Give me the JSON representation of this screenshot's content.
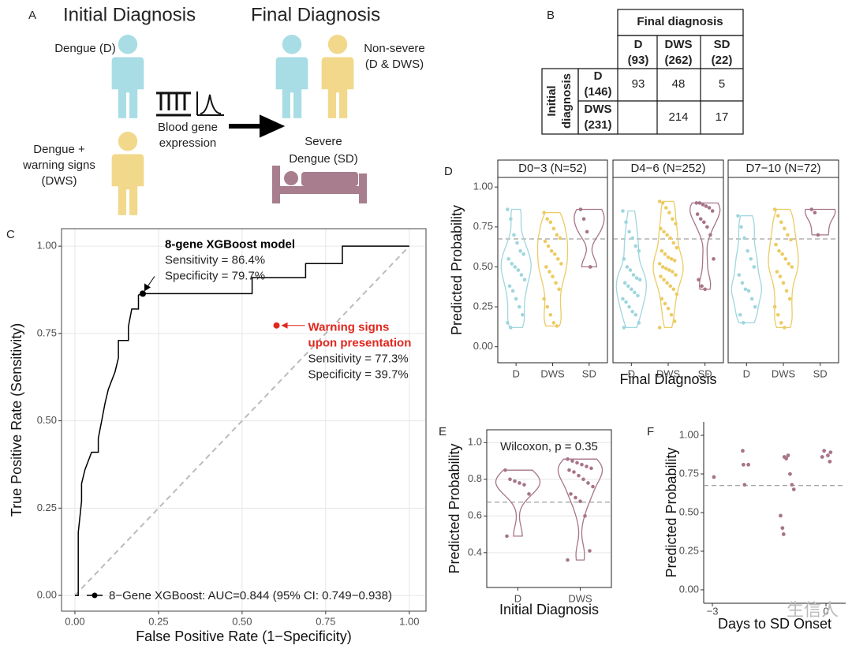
{
  "panel_labels": [
    "A",
    "B",
    "C",
    "D",
    "E",
    "F"
  ],
  "panel_a": {
    "initial": "Initial Diagnosis",
    "final": "Final Diagnosis",
    "dengue": "Dengue (D)",
    "dws": [
      "Dengue +",
      "warning signs",
      "(DWS)"
    ],
    "blood": [
      "Blood gene",
      "expression"
    ],
    "nonsevere": [
      "Non-severe",
      "(D & DWS)"
    ],
    "severe": [
      "Severe",
      "Dengue (SD)"
    ]
  },
  "panel_b": {
    "header": "Final diagnosis",
    "side": [
      "Initial",
      "diagnosis"
    ],
    "columns": [
      [
        "D",
        "(93)"
      ],
      [
        "DWS",
        "(262)"
      ],
      [
        "SD",
        "(22)"
      ]
    ],
    "rows": [
      {
        "label": [
          "D",
          "(146)"
        ],
        "cells": [
          "93",
          "48",
          "5"
        ]
      },
      {
        "label": [
          "DWS",
          "(231)"
        ],
        "cells": [
          null,
          "214",
          "17"
        ]
      }
    ]
  },
  "watermark": "生信人",
  "chart_data": [
    {
      "type": "line",
      "xlabel": "False Positive Rate (1−Specificity)",
      "ylabel": "True Positive Rate (Sensitivity)",
      "x": [
        0,
        0.01,
        0.01,
        0.02,
        0.02,
        0.03,
        0.05,
        0.07,
        0.07,
        0.08,
        0.09,
        0.1,
        0.12,
        0.13,
        0.13,
        0.16,
        0.16,
        0.17,
        0.19,
        0.19,
        0.2,
        0.53,
        0.53,
        0.69,
        0.69,
        0.8,
        0.8,
        1
      ],
      "series": [
        {
          "name": "8−Gene XGBoost: AUC=0.844 (95% CI: 0.749−0.938)",
          "color": "#000000",
          "values": [
            0,
            0,
            0.18,
            0.27,
            0.32,
            0.36,
            0.41,
            0.41,
            0.45,
            0.5,
            0.55,
            0.59,
            0.64,
            0.68,
            0.73,
            0.73,
            0.77,
            0.82,
            0.82,
            0.86,
            0.864,
            0.864,
            0.91,
            0.91,
            0.95,
            0.95,
            1,
            1
          ]
        }
      ],
      "xlim": [
        -0.04,
        1.05
      ],
      "ylim": [
        -0.045,
        1.05
      ],
      "xticks": [
        {
          "value": 0,
          "label": "0.00"
        },
        0.25,
        {
          "value": 0.5,
          "label": "0.50"
        },
        0.75,
        {
          "value": 1,
          "label": "1.00"
        }
      ],
      "yticks": [
        {
          "value": 0,
          "label": "0.00"
        },
        0.25,
        {
          "value": 0.5,
          "label": "0.50"
        },
        0.75,
        {
          "value": 1,
          "label": "1.00"
        }
      ],
      "grid": true,
      "annotations": [
        {
          "title": [
            "8-gene XGBoost model"
          ],
          "lines": [
            "Sensitivity = 86.4%",
            "Specificity = 79.7%"
          ],
          "x": 0.203,
          "y": 0.864,
          "color": "#000000"
        },
        {
          "title": [
            "Warning signs",
            "upon presentation"
          ],
          "lines": [
            "Sensitivity = 77.3%",
            "Specificity = 39.7%"
          ],
          "x": 0.603,
          "y": 0.773,
          "color": "#e0281e"
        }
      ]
    },
    {
      "type": "violin",
      "ylabel": "Predicted Probability",
      "xlabel": "Final Diagnosis",
      "categories": [
        "D",
        "DWS",
        "SD"
      ],
      "colors": [
        "#9fd6de",
        "#eccb63",
        "#a7748a"
      ],
      "ylim": [
        -0.1,
        1.06
      ],
      "yticks": [
        {
          "value": 0,
          "label": "0.00"
        },
        0.25,
        {
          "value": 0.5,
          "label": "0.50"
        },
        0.75,
        {
          "value": 1,
          "label": "1.00"
        }
      ],
      "threshold": 0.675,
      "facets": [
        {
          "title": "D0−3 (N=52)",
          "groups": [
            [
              0.86,
              0.8,
              0.7,
              0.65,
              0.6,
              0.58,
              0.55,
              0.52,
              0.5,
              0.48,
              0.45,
              0.42,
              0.38,
              0.35,
              0.3,
              0.25,
              0.2,
              0.15,
              0.12
            ],
            [
              0.84,
              0.8,
              0.78,
              0.74,
              0.7,
              0.68,
              0.66,
              0.63,
              0.6,
              0.58,
              0.55,
              0.52,
              0.5,
              0.47,
              0.44,
              0.4,
              0.36,
              0.3,
              0.25,
              0.2,
              0.15,
              0.13
            ],
            [
              0.86,
              0.8,
              0.72,
              0.5
            ]
          ]
        },
        {
          "title": "D4−6 (N=252)",
          "groups": [
            [
              0.85,
              0.78,
              0.72,
              0.68,
              0.63,
              0.6,
              0.55,
              0.5,
              0.48,
              0.45,
              0.43,
              0.42,
              0.4,
              0.38,
              0.36,
              0.34,
              0.32,
              0.3,
              0.28,
              0.25,
              0.22,
              0.2,
              0.15,
              0.12
            ],
            [
              0.91,
              0.9,
              0.87,
              0.84,
              0.8,
              0.77,
              0.74,
              0.72,
              0.7,
              0.68,
              0.65,
              0.62,
              0.6,
              0.58,
              0.56,
              0.55,
              0.54,
              0.52,
              0.5,
              0.49,
              0.48,
              0.47,
              0.45,
              0.44,
              0.42,
              0.4,
              0.38,
              0.36,
              0.33,
              0.3,
              0.27,
              0.24,
              0.2,
              0.16,
              0.12
            ],
            [
              0.9,
              0.9,
              0.89,
              0.88,
              0.87,
              0.85,
              0.83,
              0.8,
              0.78,
              0.75,
              0.7,
              0.55,
              0.42,
              0.38,
              0.36
            ]
          ]
        },
        {
          "title": "D7−10 (N=72)",
          "groups": [
            [
              0.82,
              0.75,
              0.68,
              0.6,
              0.55,
              0.5,
              0.45,
              0.4,
              0.36,
              0.35,
              0.3,
              0.25,
              0.2,
              0.15
            ],
            [
              0.86,
              0.82,
              0.78,
              0.74,
              0.7,
              0.67,
              0.64,
              0.6,
              0.58,
              0.55,
              0.52,
              0.5,
              0.47,
              0.44,
              0.4,
              0.35,
              0.3,
              0.25,
              0.2,
              0.15,
              0.12
            ],
            [
              0.86,
              0.84,
              0.7
            ]
          ]
        }
      ]
    },
    {
      "type": "violin",
      "ylabel": "Predicted Probability",
      "xlabel": "Initial Diagnosis",
      "categories": [
        "D",
        "DWS"
      ],
      "colors": [
        "#a7748a",
        "#a7748a"
      ],
      "ylim": [
        0.21,
        1.07
      ],
      "yticks": [
        0.4,
        0.6,
        0.8,
        {
          "value": 1,
          "label": "1.0"
        }
      ],
      "threshold": 0.675,
      "annotation": "Wilcoxon, p = 0.35",
      "facets": [
        {
          "groups": [
            [
              0.85,
              0.8,
              0.79,
              0.78,
              0.77,
              0.72,
              0.49
            ],
            [
              0.91,
              0.9,
              0.89,
              0.88,
              0.87,
              0.86,
              0.85,
              0.84,
              0.82,
              0.8,
              0.78,
              0.76,
              0.72,
              0.7,
              0.68,
              0.6,
              0.41,
              0.36
            ]
          ]
        }
      ]
    },
    {
      "type": "scatter",
      "ylabel": "Predicted Probability",
      "xlabel": "Days to SD Onset",
      "color": "#a7748a",
      "x": [
        -2.96,
        -2.2,
        -2.18,
        -2.15,
        -2.05,
        -1.2,
        -1.15,
        -1.12,
        -1.1,
        -1.05,
        -1.0,
        -0.95,
        -0.9,
        -0.85,
        -0.1,
        -0.05,
        0.05,
        0.1,
        0.12
      ],
      "values": [
        0.73,
        0.9,
        0.81,
        0.68,
        0.81,
        0.48,
        0.4,
        0.36,
        0.86,
        0.85,
        0.87,
        0.75,
        0.68,
        0.65,
        0.86,
        0.9,
        0.87,
        0.83,
        0.89
      ],
      "xlim": [
        -3.23,
        0.52
      ],
      "ylim": [
        -0.087,
        1.087
      ],
      "xticks": [
        {
          "value": -3,
          "label": "−3"
        },
        0
      ],
      "yticks": [
        {
          "value": 0,
          "label": "0.00"
        },
        0.25,
        {
          "value": 0.5,
          "label": "0.50"
        },
        0.75,
        {
          "value": 1,
          "label": "1.00"
        }
      ],
      "threshold": 0.675
    }
  ]
}
